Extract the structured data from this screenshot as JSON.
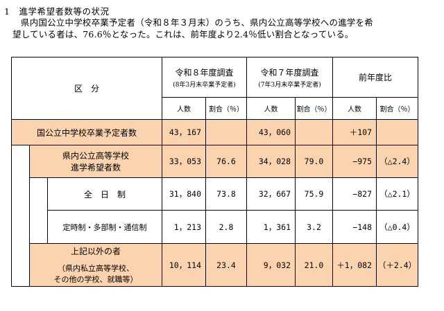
{
  "heading": "1　進学希望者数等の状況",
  "paragraph": {
    "line1": "県内国公立中学校卒業予定者（令和８年３月末）のうち、県内公立高等学校への進学を希",
    "line2": "望している者は、76.6％となった。これは、前年度より2.4％低い割合となっている。"
  },
  "table": {
    "kubun_label": "区　分",
    "r8": {
      "title": "令和８年度調査",
      "sub": "(8年3月末卒業予定者)"
    },
    "r7": {
      "title": "令和７年度調査",
      "sub": "(7年3月末卒業予定者)"
    },
    "diff": {
      "title": "前年度比"
    },
    "col_count": "人数",
    "col_ratio": "割合（％）",
    "rows": [
      {
        "label": "国公立中学校卒業予定者数",
        "r8_count": "43，167",
        "r8_ratio": "",
        "r7_count": "43，060",
        "r7_ratio": "",
        "diff_count": "＋107",
        "diff_ratio": ""
      },
      {
        "label1": "県内公立高等学校",
        "label2": "進学希望者数",
        "r8_count": "33，053",
        "r8_ratio": "76.6",
        "r7_count": "34，028",
        "r7_ratio": "79.0",
        "diff_count": "−975",
        "diff_ratio": "（△2.4）"
      },
      {
        "label": "全　日　制",
        "r8_count": "31，840",
        "r8_ratio": "73.8",
        "r7_count": "32，667",
        "r7_ratio": "75.9",
        "diff_count": "−827",
        "diff_ratio": "（△2.1）"
      },
      {
        "label": "定時制・多部制・通信制",
        "r8_count": "1，213",
        "r8_ratio": "2.8",
        "r7_count": "1，361",
        "r7_ratio": "3.2",
        "diff_count": "−148",
        "diff_ratio": "（△0.4）"
      },
      {
        "label1": "上記以外の者",
        "label2": "（県内私立高等学校、",
        "label3": "その他の学校、就職等）",
        "r8_count": "10，114",
        "r8_ratio": "23.4",
        "r7_count": "9，032",
        "r7_ratio": "21.0",
        "diff_count": "＋1，082",
        "diff_ratio": "（＋2.4）"
      }
    ]
  },
  "colors": {
    "highlight": "#fbd3ae",
    "border": "#000000"
  }
}
